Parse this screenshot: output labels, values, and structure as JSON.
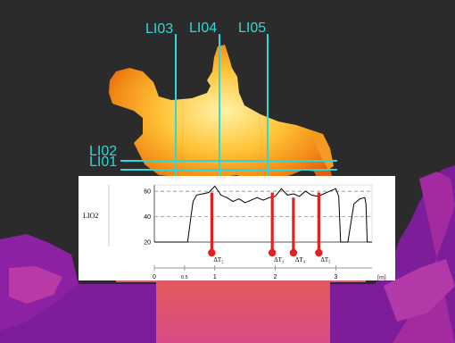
{
  "overlay_lines": {
    "vertical": [
      "LI03",
      "LI04",
      "LI05"
    ],
    "horizontal": [
      "LI02",
      "LI01"
    ]
  },
  "chart_data": {
    "type": "line",
    "ylabel": "LIO2",
    "ylim": [
      20,
      65
    ],
    "yticks": [
      20,
      40,
      60
    ],
    "grid_y": [
      40,
      60
    ],
    "xlim": [
      0,
      3.6
    ],
    "xunit": "[m]",
    "xticks": [
      {
        "value": 0,
        "label": "0"
      },
      {
        "value": 0.5,
        "label": "0.5"
      },
      {
        "value": 1,
        "label": "1"
      },
      {
        "value": 2,
        "label": "2"
      },
      {
        "value": 3,
        "label": "3"
      }
    ],
    "series": [
      {
        "x": [
          0,
          0.55,
          0.62,
          0.64,
          0.7,
          0.8,
          0.9,
          1.0,
          1.1,
          1.2,
          1.3,
          1.4,
          1.5,
          1.6,
          1.7,
          1.8,
          1.9,
          2.0,
          2.1,
          2.2,
          2.3,
          2.4,
          2.5,
          2.6,
          2.7,
          2.8,
          2.9,
          3.0,
          3.05,
          3.08,
          3.12,
          3.2,
          3.3,
          3.4,
          3.48,
          3.5,
          3.52,
          3.6
        ],
        "y": [
          20,
          20,
          45,
          52,
          57,
          58,
          59,
          64,
          57,
          55,
          52,
          54,
          51,
          53,
          55,
          53,
          55,
          56,
          62,
          57,
          58,
          56,
          60,
          57,
          56,
          58,
          60,
          62,
          56,
          20,
          20,
          20,
          50,
          54,
          55,
          50,
          20,
          20
        ]
      }
    ],
    "markers": [
      {
        "label": "ΔT₂",
        "x": 0.95,
        "y_top": 59
      },
      {
        "label": "ΔT₃",
        "x": 1.95,
        "y_top": 59
      },
      {
        "label": "ΔT₄",
        "x": 2.3,
        "y_top": 55
      },
      {
        "label": "ΔT₅",
        "x": 2.72,
        "y_top": 59
      }
    ]
  },
  "colors": {
    "background": "#2b2b2b",
    "overlay_line": "#2fd8d8",
    "series": "#000000",
    "marker": "#e41f1f"
  }
}
